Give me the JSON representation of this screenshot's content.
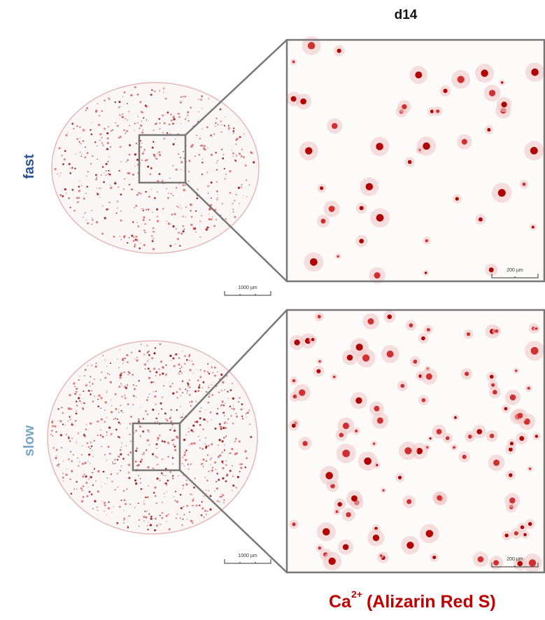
{
  "header": {
    "title": "d14"
  },
  "rows": [
    {
      "label": "fast",
      "overview_scale": "1000 µm",
      "zoom_scale": "200 µm"
    },
    {
      "label": "slow",
      "overview_scale": "1000 µm",
      "zoom_scale": "200 µm"
    }
  ],
  "footer": {
    "ion": "Ca",
    "charge": "2+",
    "stain": "(Alizarin Red S)"
  }
}
